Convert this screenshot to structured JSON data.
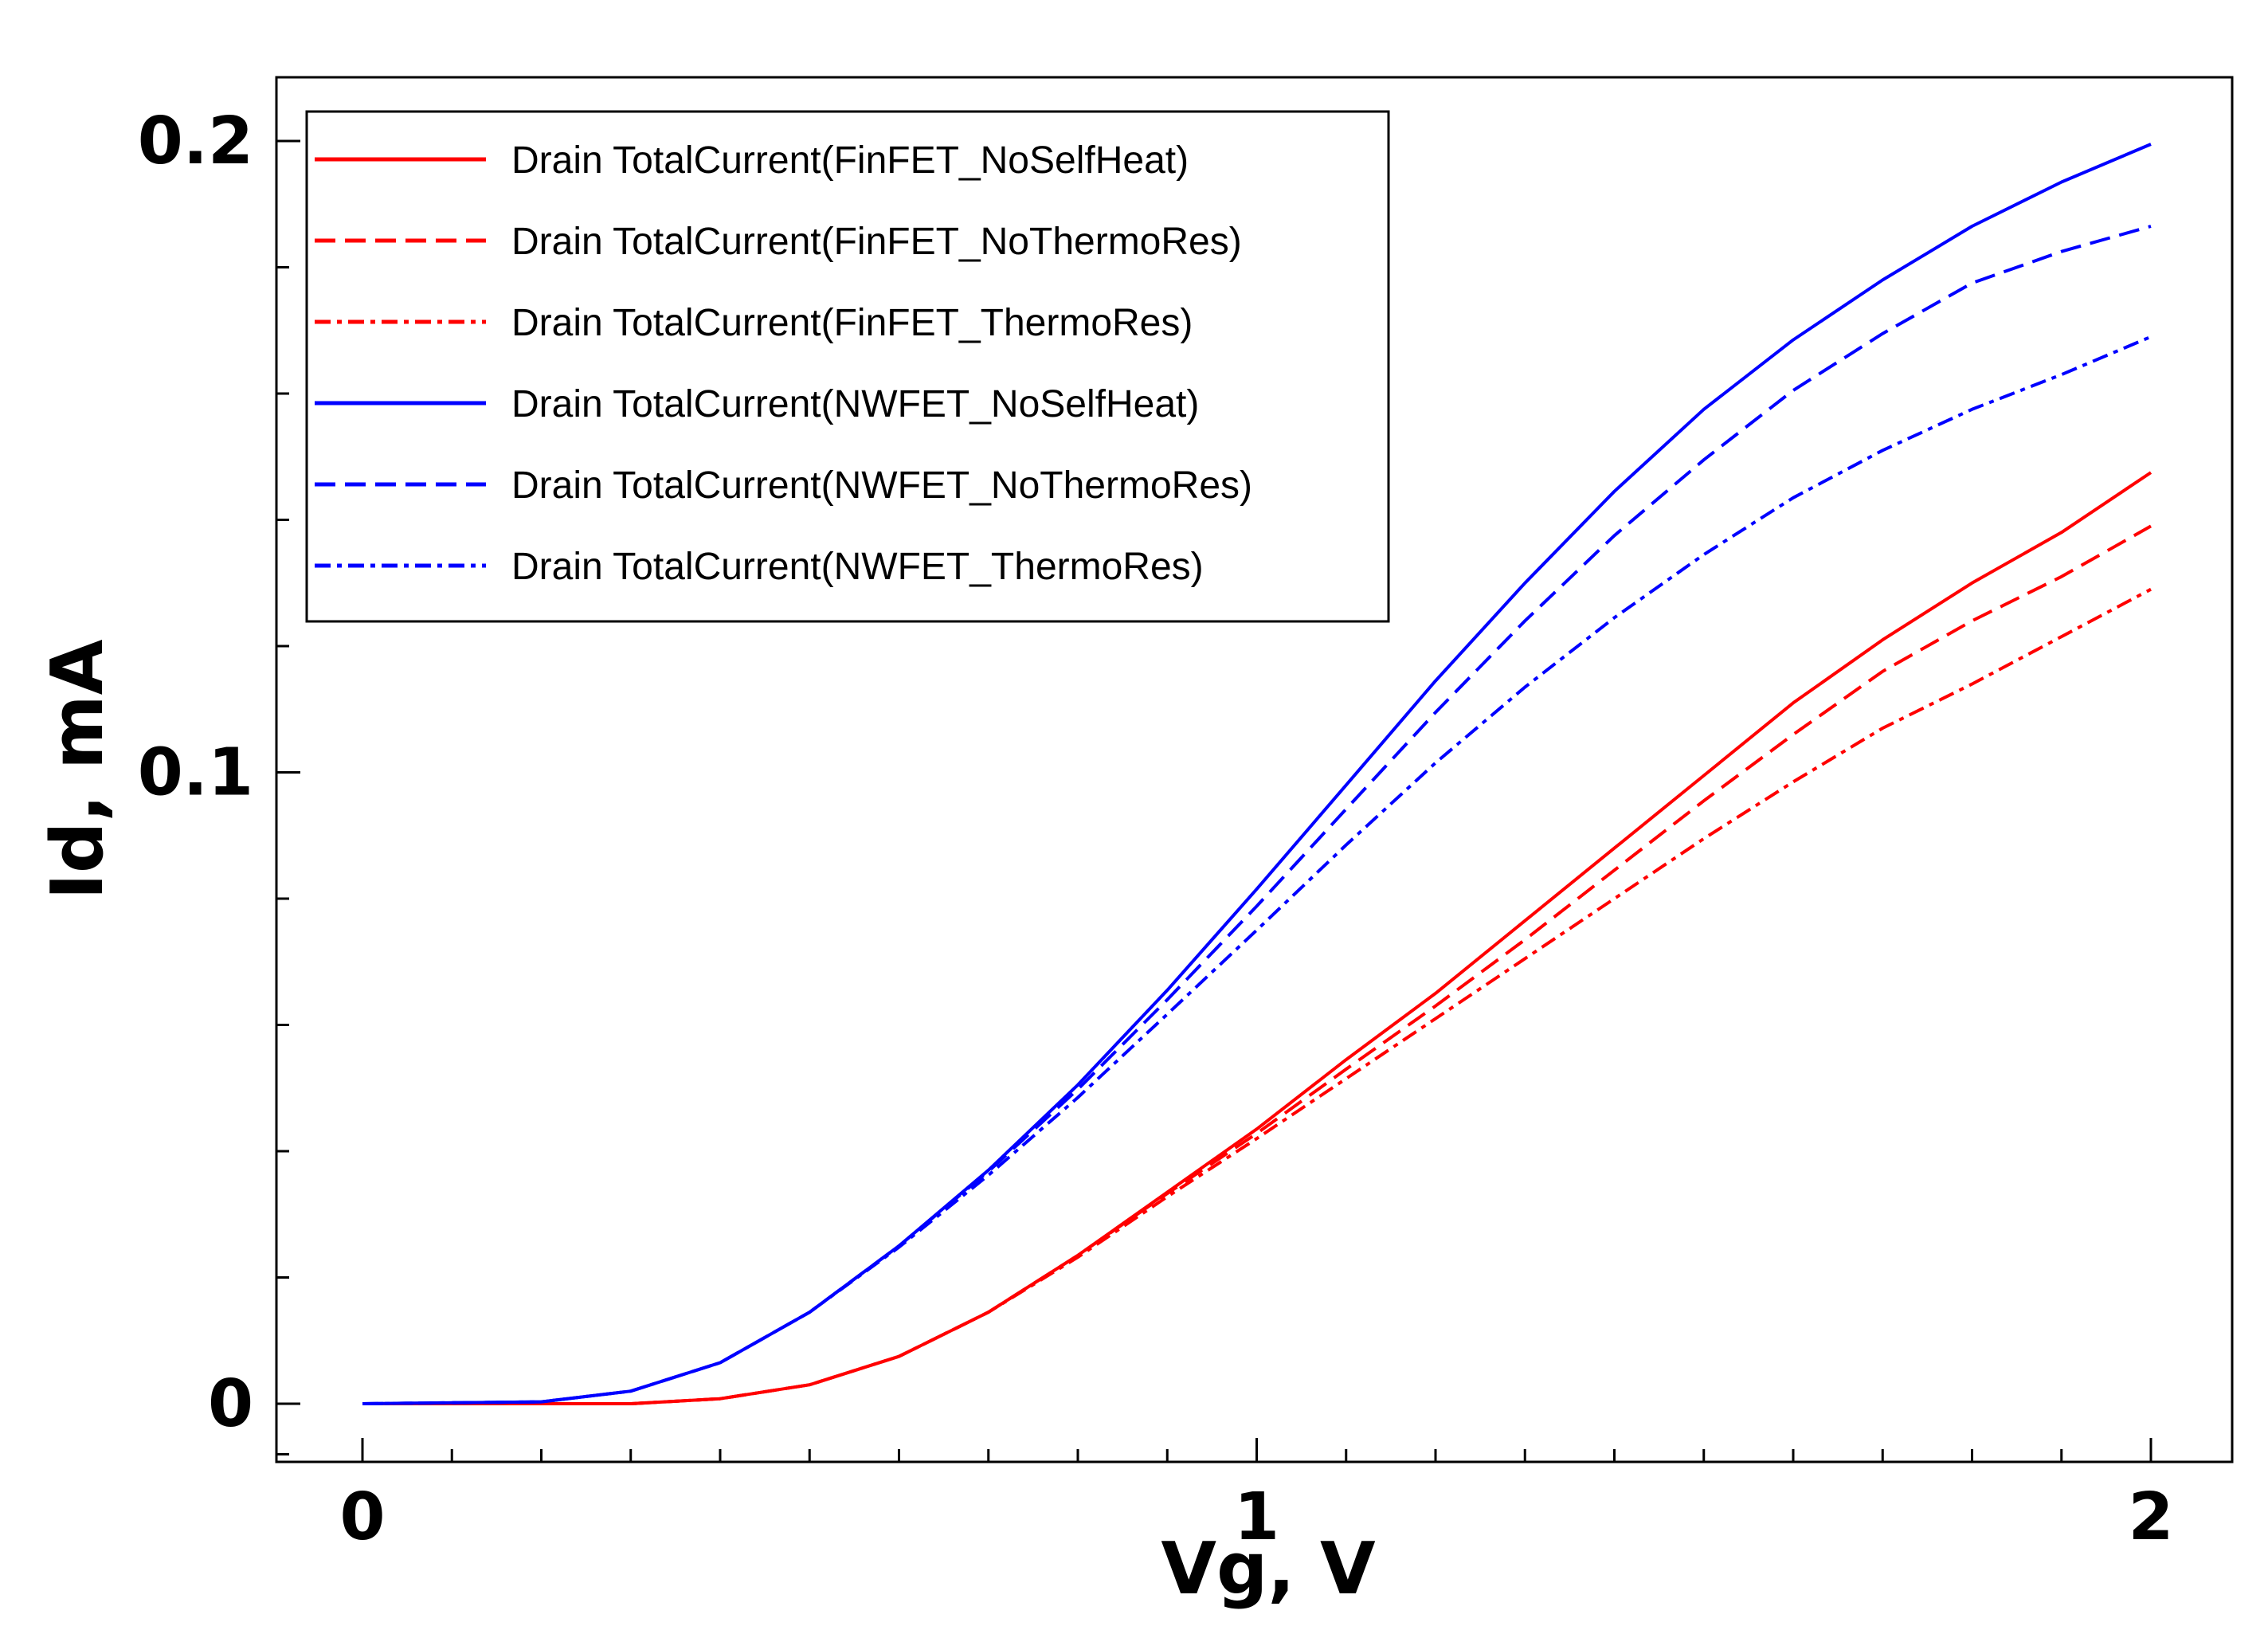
{
  "chart_data": {
    "type": "line",
    "title": "",
    "xlabel": "Vg, V",
    "ylabel": "Id, mA",
    "xlim": [
      -0.1,
      2.1
    ],
    "ylim": [
      -0.01,
      0.21
    ],
    "x_ticks": [
      0,
      1,
      2
    ],
    "x_tick_labels": [
      "0",
      "1",
      "2"
    ],
    "y_ticks": [
      0,
      0.1,
      0.2
    ],
    "y_tick_labels": [
      "0",
      "0.1",
      "0.2"
    ],
    "x_minor_step": 0.1,
    "y_minor_step": 0.02,
    "grid": false,
    "legend_position": "top-left",
    "x": [
      0,
      0.2,
      0.3,
      0.4,
      0.5,
      0.6,
      0.7,
      0.8,
      0.9,
      1.0,
      1.1,
      1.2,
      1.3,
      1.4,
      1.5,
      1.6,
      1.7,
      1.8,
      1.9,
      2.0
    ],
    "series": [
      {
        "name": "Drain TotalCurrent(FinFET_NoSelfHeat)",
        "color": "#ff0000",
        "dash": "solid",
        "values": [
          0,
          0,
          0,
          0.0008,
          0.003,
          0.0075,
          0.0145,
          0.0235,
          0.0335,
          0.0435,
          0.0545,
          0.065,
          0.0765,
          0.088,
          0.0995,
          0.111,
          0.121,
          0.13,
          0.138,
          0.1475
        ]
      },
      {
        "name": "Drain TotalCurrent(FinFET_NoThermoRes)",
        "color": "#ff0000",
        "dash": "dashed",
        "values": [
          0,
          0,
          0,
          0.0008,
          0.003,
          0.0075,
          0.0145,
          0.0235,
          0.0333,
          0.0428,
          0.053,
          0.063,
          0.0735,
          0.0845,
          0.0955,
          0.106,
          0.116,
          0.124,
          0.131,
          0.139
        ]
      },
      {
        "name": "Drain TotalCurrent(FinFET_ThermoRes)",
        "color": "#ff0000",
        "dash": "dashdot",
        "values": [
          0,
          0,
          0,
          0.0008,
          0.003,
          0.0075,
          0.0145,
          0.0232,
          0.0328,
          0.042,
          0.0515,
          0.061,
          0.0705,
          0.08,
          0.0895,
          0.0985,
          0.107,
          0.114,
          0.1215,
          0.129
        ]
      },
      {
        "name": "Drain TotalCurrent(NWFET_NoSelfHeat)",
        "color": "#0000ff",
        "dash": "solid",
        "values": [
          0,
          0.0003,
          0.002,
          0.0065,
          0.0145,
          0.025,
          0.037,
          0.0505,
          0.0655,
          0.0815,
          0.098,
          0.1145,
          0.13,
          0.1445,
          0.1575,
          0.1685,
          0.178,
          0.1865,
          0.1935,
          0.1995
        ]
      },
      {
        "name": "Drain TotalCurrent(NWFET_NoThermoRes)",
        "color": "#0000ff",
        "dash": "dashed",
        "values": [
          0,
          0.0003,
          0.002,
          0.0065,
          0.0145,
          0.025,
          0.0368,
          0.0498,
          0.064,
          0.0788,
          0.0942,
          0.1095,
          0.124,
          0.1375,
          0.1495,
          0.1605,
          0.1695,
          0.1775,
          0.1825,
          0.1865
        ]
      },
      {
        "name": "Drain TotalCurrent(NWFET_ThermoRes)",
        "color": "#0000ff",
        "dash": "dashdot",
        "values": [
          0,
          0.0003,
          0.002,
          0.0065,
          0.0145,
          0.0248,
          0.0362,
          0.0485,
          0.0617,
          0.075,
          0.0885,
          0.1015,
          0.1135,
          0.1245,
          0.1345,
          0.1435,
          0.151,
          0.1575,
          0.163,
          0.169
        ]
      }
    ]
  }
}
